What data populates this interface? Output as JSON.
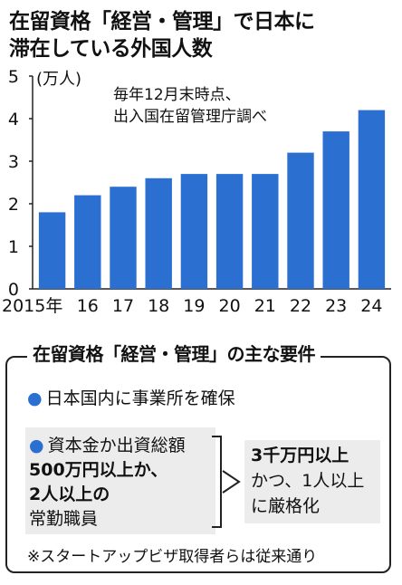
{
  "title": {
    "line1": "在留資格「経営・管理」で日本に",
    "line2": "滞在している外国人数"
  },
  "chart_data": {
    "type": "bar",
    "unit_label": "(万人)",
    "note_line1": "毎年12月末時点、",
    "note_line2": "出入国在留管理庁調べ",
    "categories": [
      "2015年",
      "16",
      "17",
      "18",
      "19",
      "20",
      "21",
      "22",
      "23",
      "24"
    ],
    "values": [
      1.8,
      2.2,
      2.4,
      2.6,
      2.7,
      2.7,
      2.7,
      3.2,
      3.7,
      4.2
    ],
    "ylim": [
      0,
      5
    ],
    "yticks": [
      "0",
      "1",
      "2",
      "3",
      "4",
      "5"
    ],
    "bar_color": "#2b6fd1",
    "grid": false
  },
  "requirements": {
    "title": "在留資格「経営・管理」の主な要件",
    "item1": "日本国内に事業所を確保",
    "item2_line1": "資本金か出資総額",
    "item2_line2": "500万円以上か、",
    "item2_line3": "2人以上の",
    "item2_line4": "常勤職員",
    "new_line1": "3千万円以上",
    "new_line2": "かつ、1人以上",
    "new_line3": "に厳格化",
    "footnote": "※スタートアップビザ取得者らは従来通り"
  },
  "colors": {
    "accent": "#2b6fd1",
    "panel": "#ececec"
  }
}
